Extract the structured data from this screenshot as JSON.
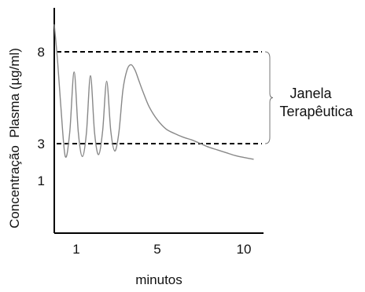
{
  "chart_data": {
    "type": "line",
    "title": "",
    "xlabel": "minutos",
    "ylabel": "Concentração  Plasma (µg/ml)",
    "x_ticks": [
      {
        "value": 1,
        "label": "1"
      },
      {
        "value": 5,
        "label": "5"
      },
      {
        "value": 10,
        "label": "10"
      }
    ],
    "y_ticks": [
      {
        "value": 1,
        "label": "1"
      },
      {
        "value": 3,
        "label": "3"
      },
      {
        "value": 8,
        "label": "8"
      }
    ],
    "xlim": [
      0,
      11
    ],
    "ylim": [
      0,
      10
    ],
    "thresholds": [
      {
        "name": "upper",
        "value": 8
      },
      {
        "name": "lower",
        "value": 3
      }
    ],
    "annotation": {
      "line1": "Janela",
      "line2": "Terapêutica"
    },
    "series": [
      {
        "x": [
          0,
          0.15,
          0.3,
          0.5,
          0.7,
          0.9,
          1.1,
          1.3,
          1.5,
          1.7,
          1.9,
          2.1,
          2.3,
          2.5,
          2.7,
          2.9,
          3.1,
          3.3,
          3.5,
          3.7,
          3.9,
          4.1,
          4.3,
          4.6,
          5.0,
          5.5,
          6.0,
          6.5,
          7.0,
          7.5,
          8.0,
          8.5,
          9.0,
          9.5,
          10.0,
          10.5
        ],
        "y": [
          9.5,
          7.5,
          5.0,
          2.3,
          3.6,
          6.9,
          3.6,
          2.3,
          3.6,
          6.7,
          3.6,
          2.4,
          3.7,
          6.4,
          3.7,
          2.6,
          3.6,
          5.9,
          7.0,
          7.3,
          7.0,
          6.4,
          5.8,
          5.0,
          4.3,
          3.8,
          3.55,
          3.35,
          3.2,
          3.0,
          2.8,
          2.65,
          2.5,
          2.35,
          2.25,
          2.15
        ]
      }
    ],
    "grid": false
  }
}
